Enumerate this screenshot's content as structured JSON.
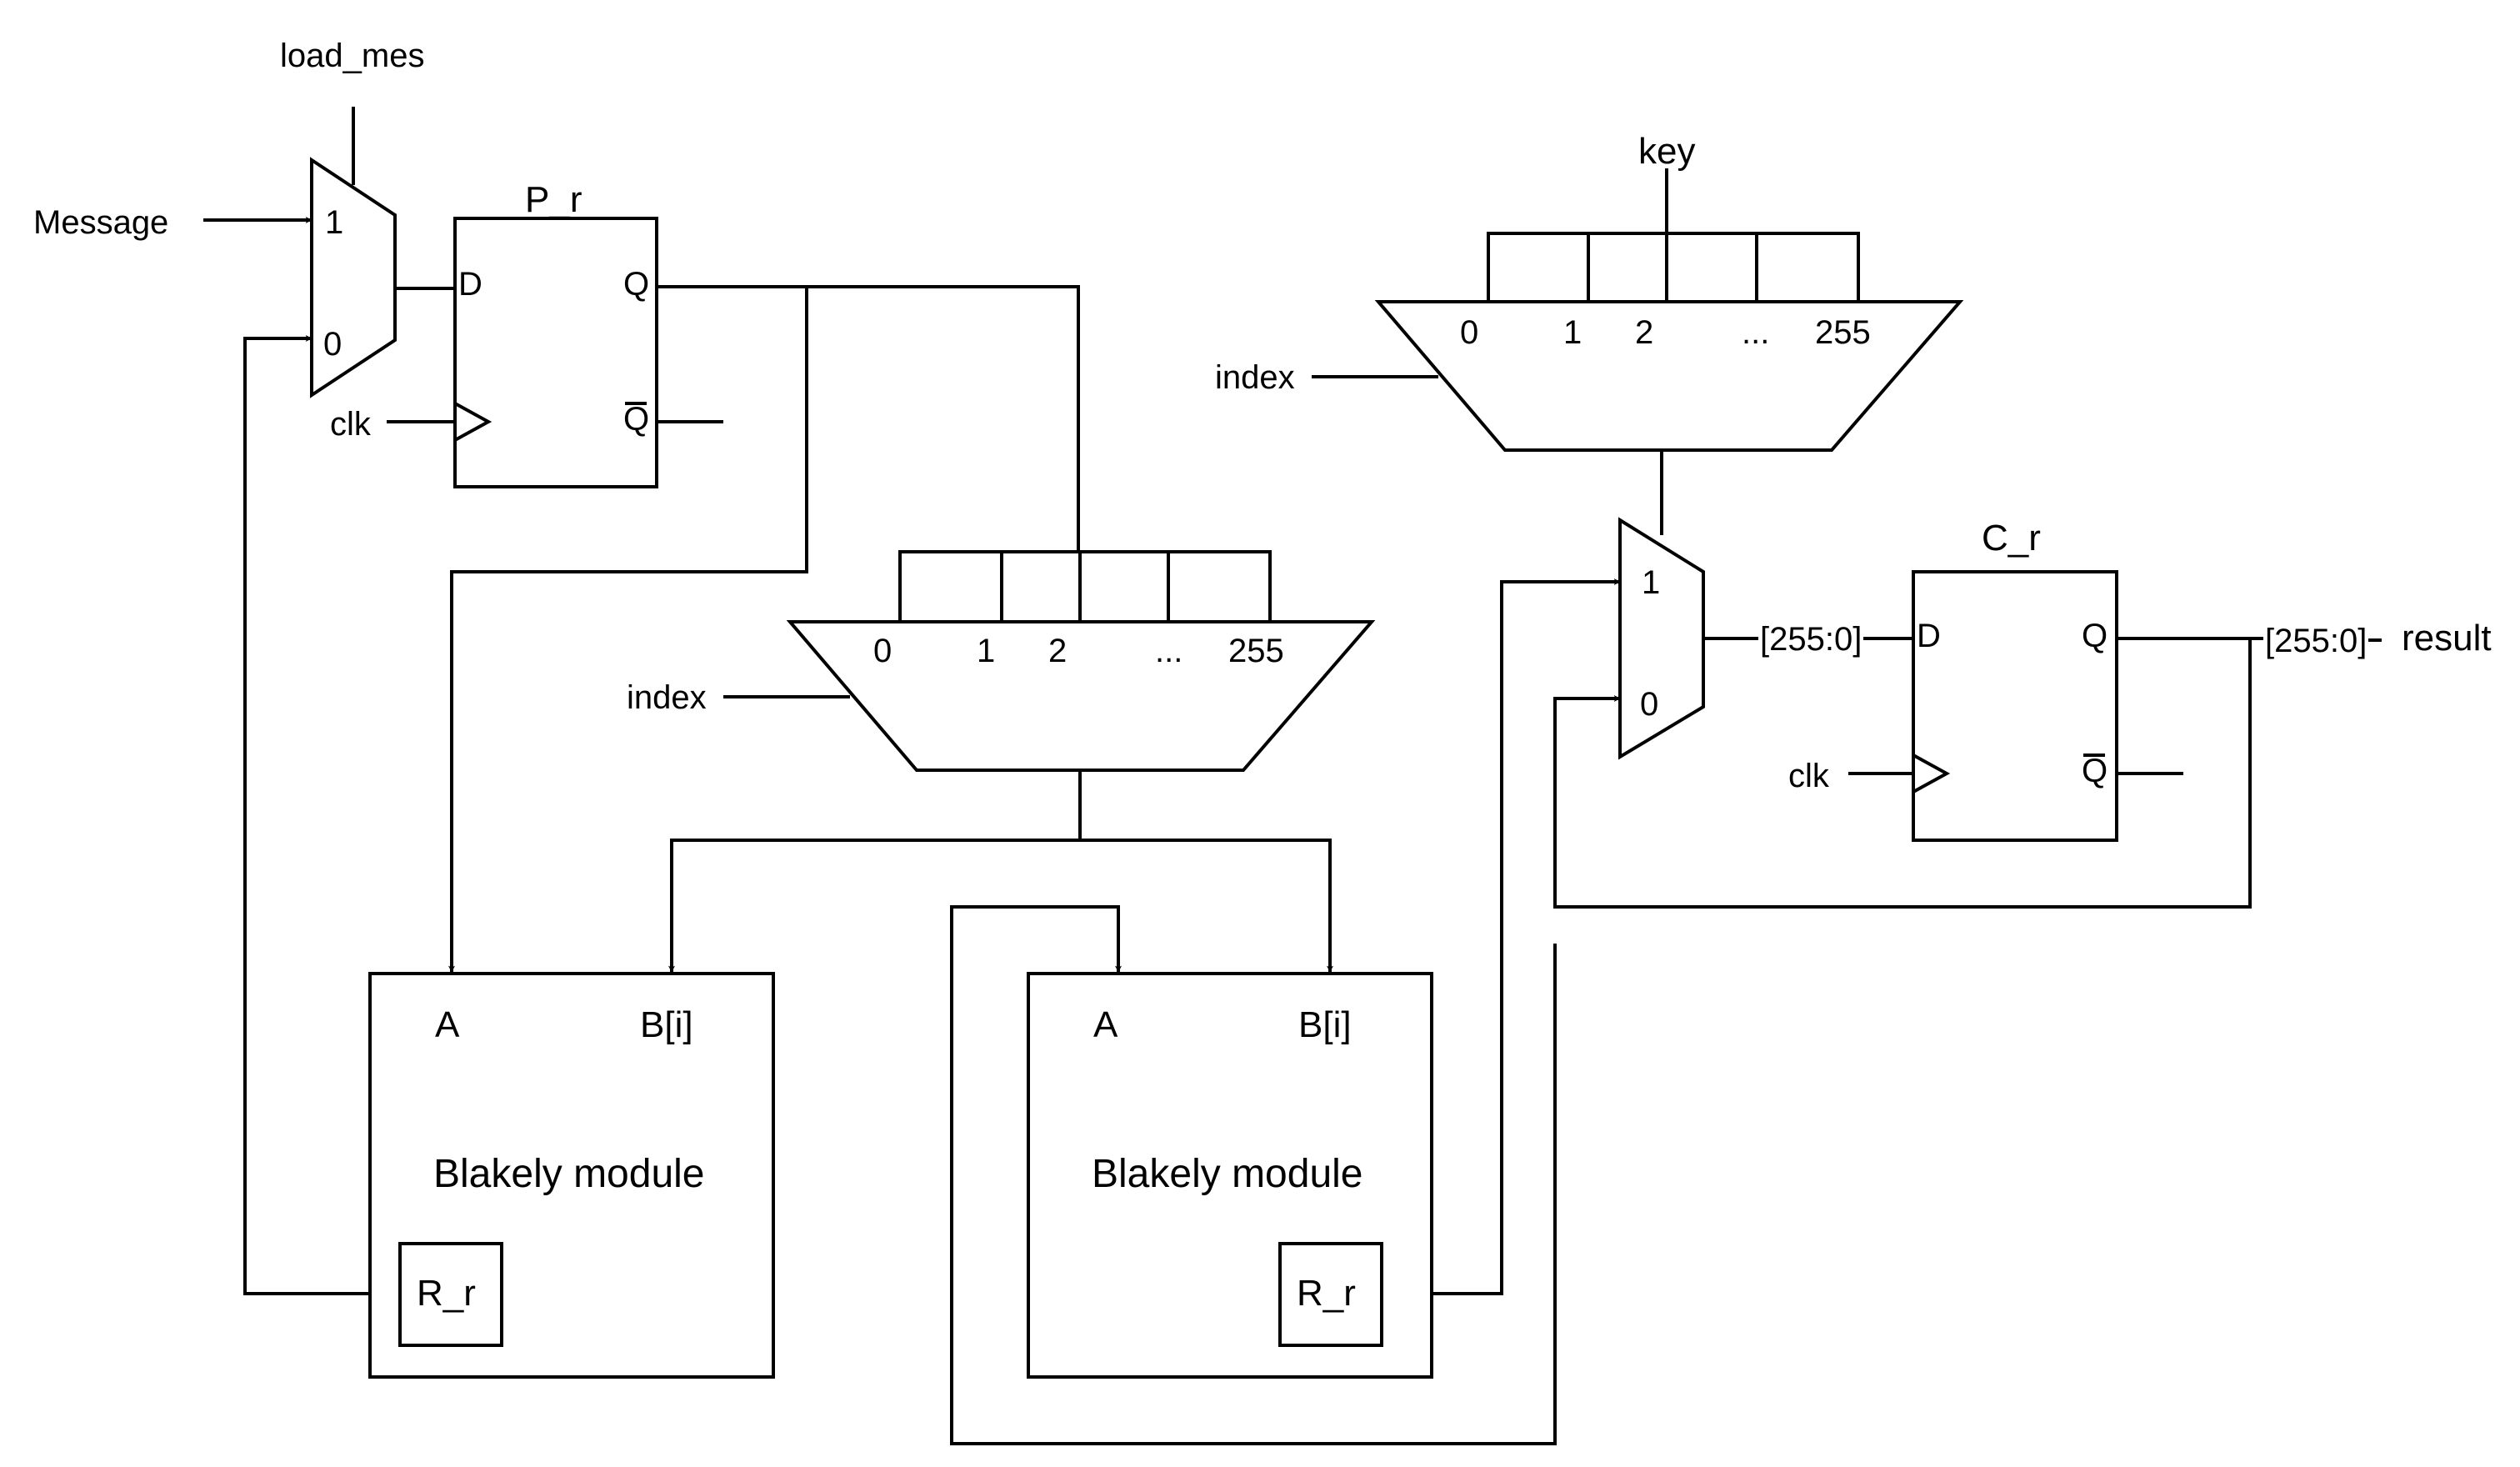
{
  "signals": {
    "load_mes": "load_mes",
    "message": "Message",
    "key": "key",
    "index_1": "index",
    "index_2": "index",
    "clk_1": "clk",
    "clk_2": "clk",
    "result": "result"
  },
  "mux_message": {
    "in1": "1",
    "in0": "0"
  },
  "mux_result": {
    "in1": "1",
    "in0": "0"
  },
  "p_reg": {
    "title": "P_r",
    "d": "D",
    "q": "Q",
    "qbar": "Q"
  },
  "c_reg": {
    "title": "C_r",
    "d": "D",
    "q": "Q",
    "qbar": "Q"
  },
  "key_select": {
    "labels": [
      "0",
      "1",
      "2",
      "...",
      "255"
    ]
  },
  "p_select": {
    "labels": [
      "0",
      "1",
      "2",
      "...",
      "255"
    ]
  },
  "buses": {
    "c_in": "[255:0]",
    "c_out": "[255:0]"
  },
  "blakely_1": {
    "port_a": "A",
    "port_b": "B[i]",
    "title": "Blakely module",
    "reg": "R_r"
  },
  "blakely_2": {
    "port_a": "A",
    "port_b": "B[i]",
    "title": "Blakely module",
    "reg": "R_r"
  }
}
